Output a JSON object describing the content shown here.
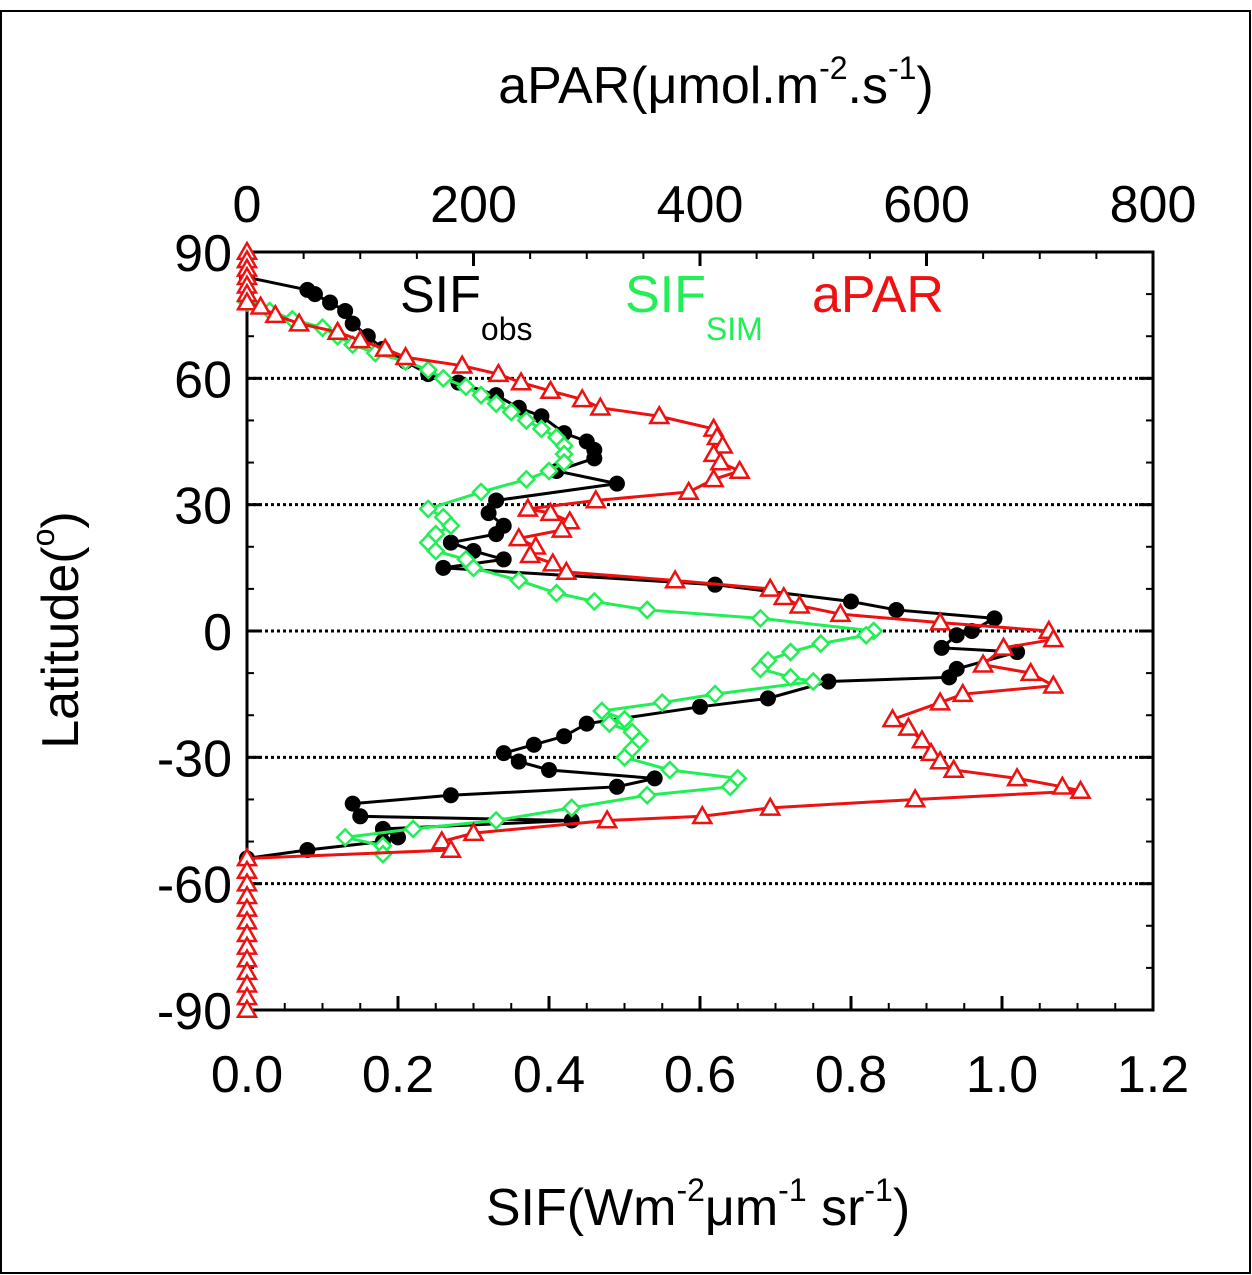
{
  "chart_data": {
    "type": "line",
    "orientation": "horizontal-profile",
    "top_axis": {
      "label_main": "aPAR(μmol.m",
      "label_sup1": "-2",
      "label_mid": ".s",
      "label_sup2": "-1",
      "label_end": ")",
      "range": [
        0,
        800
      ],
      "ticks": [
        "0",
        "200",
        "400",
        "600",
        "800"
      ]
    },
    "bottom_axis": {
      "label_main": "SIF(Wm",
      "label_sup1": "-2",
      "label_mid": "μm",
      "label_sup2": "-1",
      "label_mid2": " sr",
      "label_sup3": "-1",
      "label_end": ")",
      "range": [
        0,
        1.2
      ],
      "ticks": [
        "0.0",
        "0.2",
        "0.4",
        "0.6",
        "0.8",
        "1.0",
        "1.2"
      ]
    },
    "left_axis": {
      "label_main": "Latitude(",
      "label_sup": "o",
      "label_end": ")",
      "range": [
        -90,
        90
      ],
      "ticks": [
        "90",
        "60",
        "30",
        "0",
        "-30",
        "-60",
        "-90"
      ]
    },
    "grid": "horizontal dotted at 60, 30, 0, -30, -60",
    "legend": [
      {
        "base": "SIF",
        "sub": "obs",
        "color": "#000000"
      },
      {
        "base": "SIF",
        "sub": "SIM",
        "color": "#22ee55"
      },
      {
        "base": "aPAR",
        "sub": "",
        "color": "#ee1111"
      }
    ],
    "series": [
      {
        "name": "SIF obs",
        "axis": "bottom",
        "color": "#000000",
        "marker": "filled-circle",
        "points": [
          [
            0.0,
            84
          ],
          [
            0.08,
            81
          ],
          [
            0.09,
            80
          ],
          [
            0.11,
            78
          ],
          [
            0.13,
            76
          ],
          [
            0.14,
            73
          ],
          [
            0.16,
            70
          ],
          [
            0.18,
            67
          ],
          [
            0.21,
            64
          ],
          [
            0.24,
            61
          ],
          [
            0.28,
            59
          ],
          [
            0.33,
            56
          ],
          [
            0.36,
            53
          ],
          [
            0.39,
            51
          ],
          [
            0.42,
            47
          ],
          [
            0.45,
            45
          ],
          [
            0.46,
            43
          ],
          [
            0.46,
            41
          ],
          [
            0.41,
            38
          ],
          [
            0.49,
            35
          ],
          [
            0.33,
            31
          ],
          [
            0.32,
            28
          ],
          [
            0.34,
            25
          ],
          [
            0.33,
            23
          ],
          [
            0.27,
            21
          ],
          [
            0.3,
            19
          ],
          [
            0.34,
            17
          ],
          [
            0.26,
            15
          ],
          [
            0.62,
            11
          ],
          [
            0.8,
            7
          ],
          [
            0.86,
            5
          ],
          [
            0.99,
            3
          ],
          [
            0.96,
            0
          ],
          [
            0.94,
            -1
          ],
          [
            0.92,
            -4
          ],
          [
            1.02,
            -5
          ],
          [
            0.94,
            -9
          ],
          [
            0.93,
            -11
          ],
          [
            0.77,
            -12
          ],
          [
            0.69,
            -16
          ],
          [
            0.6,
            -18
          ],
          [
            0.45,
            -22
          ],
          [
            0.42,
            -25
          ],
          [
            0.38,
            -27
          ],
          [
            0.34,
            -29
          ],
          [
            0.36,
            -31
          ],
          [
            0.4,
            -33
          ],
          [
            0.54,
            -35
          ],
          [
            0.49,
            -37
          ],
          [
            0.27,
            -39
          ],
          [
            0.14,
            -41
          ],
          [
            0.15,
            -44
          ],
          [
            0.43,
            -45
          ],
          [
            0.18,
            -47
          ],
          [
            0.2,
            -49
          ],
          [
            0.18,
            -50
          ],
          [
            0.08,
            -52
          ],
          [
            0.0,
            -54
          ]
        ]
      },
      {
        "name": "SIF SIM",
        "axis": "bottom",
        "color": "#22ee55",
        "marker": "open-diamond",
        "points": [
          [
            0.0,
            78
          ],
          [
            0.03,
            76
          ],
          [
            0.06,
            74
          ],
          [
            0.1,
            72
          ],
          [
            0.12,
            70
          ],
          [
            0.14,
            68
          ],
          [
            0.17,
            66
          ],
          [
            0.21,
            64
          ],
          [
            0.24,
            62
          ],
          [
            0.26,
            60
          ],
          [
            0.29,
            58
          ],
          [
            0.31,
            56
          ],
          [
            0.33,
            54
          ],
          [
            0.35,
            52
          ],
          [
            0.37,
            50
          ],
          [
            0.39,
            48
          ],
          [
            0.41,
            46
          ],
          [
            0.42,
            44
          ],
          [
            0.42,
            42
          ],
          [
            0.42,
            40
          ],
          [
            0.4,
            38
          ],
          [
            0.37,
            36
          ],
          [
            0.31,
            33
          ],
          [
            0.24,
            29
          ],
          [
            0.26,
            27
          ],
          [
            0.27,
            25
          ],
          [
            0.25,
            23
          ],
          [
            0.24,
            21
          ],
          [
            0.25,
            19
          ],
          [
            0.29,
            17
          ],
          [
            0.3,
            15
          ],
          [
            0.36,
            12
          ],
          [
            0.41,
            9
          ],
          [
            0.46,
            7
          ],
          [
            0.53,
            5
          ],
          [
            0.68,
            3
          ],
          [
            0.83,
            0
          ],
          [
            0.82,
            -1
          ],
          [
            0.76,
            -3
          ],
          [
            0.72,
            -5
          ],
          [
            0.69,
            -7
          ],
          [
            0.68,
            -9
          ],
          [
            0.72,
            -11
          ],
          [
            0.75,
            -12
          ],
          [
            0.62,
            -15
          ],
          [
            0.55,
            -17
          ],
          [
            0.47,
            -19
          ],
          [
            0.5,
            -21
          ],
          [
            0.48,
            -22
          ],
          [
            0.51,
            -24
          ],
          [
            0.52,
            -26
          ],
          [
            0.51,
            -28
          ],
          [
            0.5,
            -30
          ],
          [
            0.56,
            -33
          ],
          [
            0.65,
            -35
          ],
          [
            0.64,
            -37
          ],
          [
            0.53,
            -39
          ],
          [
            0.43,
            -42
          ],
          [
            0.33,
            -45
          ],
          [
            0.22,
            -47
          ],
          [
            0.13,
            -49
          ],
          [
            0.18,
            -51
          ],
          [
            0.18,
            -53
          ]
        ]
      },
      {
        "name": "aPAR",
        "axis": "top",
        "color": "#ee1111",
        "marker": "open-triangle",
        "points": [
          [
            0,
            90
          ],
          [
            0,
            88
          ],
          [
            0,
            86
          ],
          [
            0,
            84
          ],
          [
            0,
            82
          ],
          [
            0,
            80
          ],
          [
            0,
            78
          ],
          [
            12,
            77
          ],
          [
            25,
            75
          ],
          [
            46,
            73
          ],
          [
            80,
            71
          ],
          [
            100,
            69
          ],
          [
            122,
            67
          ],
          [
            140,
            65
          ],
          [
            190,
            63
          ],
          [
            222,
            61
          ],
          [
            242,
            59
          ],
          [
            268,
            57
          ],
          [
            296,
            55
          ],
          [
            312,
            53
          ],
          [
            364,
            51
          ],
          [
            412,
            48
          ],
          [
            415,
            46
          ],
          [
            420,
            44
          ],
          [
            412,
            42
          ],
          [
            418,
            40
          ],
          [
            435,
            38
          ],
          [
            412,
            36
          ],
          [
            390,
            33
          ],
          [
            308,
            31
          ],
          [
            248,
            29
          ],
          [
            268,
            28
          ],
          [
            285,
            26
          ],
          [
            278,
            24
          ],
          [
            240,
            22
          ],
          [
            255,
            20
          ],
          [
            250,
            18
          ],
          [
            270,
            16
          ],
          [
            282,
            14
          ],
          [
            378,
            12
          ],
          [
            462,
            10
          ],
          [
            474,
            8
          ],
          [
            488,
            6
          ],
          [
            524,
            4
          ],
          [
            612,
            2
          ],
          [
            708,
            0
          ],
          [
            712,
            -2
          ],
          [
            668,
            -4
          ],
          [
            650,
            -8
          ],
          [
            692,
            -10
          ],
          [
            712,
            -13
          ],
          [
            632,
            -15
          ],
          [
            612,
            -17
          ],
          [
            570,
            -21
          ],
          [
            584,
            -23
          ],
          [
            596,
            -26
          ],
          [
            604,
            -29
          ],
          [
            612,
            -31
          ],
          [
            624,
            -33
          ],
          [
            680,
            -35
          ],
          [
            720,
            -37
          ],
          [
            736,
            -38
          ],
          [
            590,
            -40
          ],
          [
            462,
            -42
          ],
          [
            402,
            -44
          ],
          [
            318,
            -45
          ],
          [
            200,
            -48
          ],
          [
            172,
            -50
          ],
          [
            180,
            -52
          ],
          [
            0,
            -54
          ],
          [
            0,
            -57
          ],
          [
            0,
            -60
          ],
          [
            0,
            -63
          ],
          [
            0,
            -66
          ],
          [
            0,
            -69
          ],
          [
            0,
            -72
          ],
          [
            0,
            -75
          ],
          [
            0,
            -78
          ],
          [
            0,
            -81
          ],
          [
            0,
            -84
          ],
          [
            0,
            -87
          ],
          [
            0,
            -90
          ]
        ]
      }
    ]
  }
}
